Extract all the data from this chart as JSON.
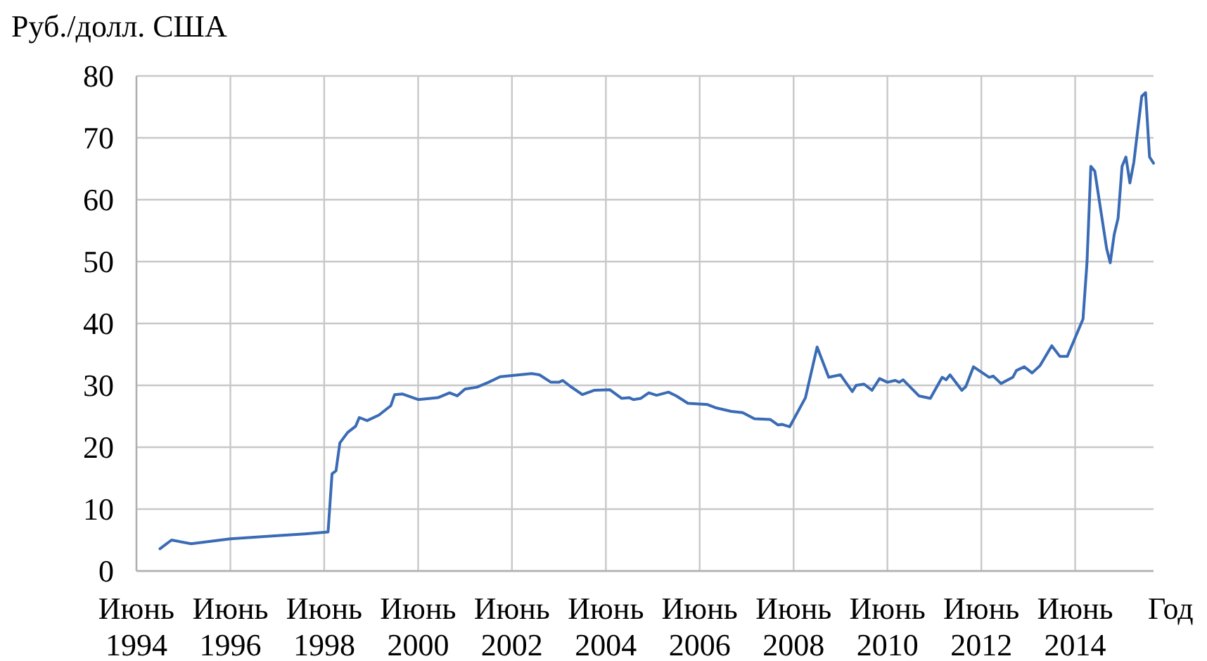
{
  "chart_data": {
    "type": "line",
    "ylabel": "Руб./долл. США",
    "xlabel": "Год",
    "xlim": [
      "1994-06",
      "2016-02"
    ],
    "ylim": [
      0,
      80
    ],
    "yticks": [
      0,
      10,
      20,
      30,
      40,
      50,
      60,
      70,
      80
    ],
    "xticks": [
      {
        "value": "1994-06",
        "label": "Июнь 1994"
      },
      {
        "value": "1996-06",
        "label": "Июнь 1996"
      },
      {
        "value": "1998-06",
        "label": "Июнь 1998"
      },
      {
        "value": "2000-06",
        "label": "Июнь 2000"
      },
      {
        "value": "2002-06",
        "label": "Июнь 2002"
      },
      {
        "value": "2004-06",
        "label": "Июнь 2004"
      },
      {
        "value": "2006-06",
        "label": "Июнь 2006"
      },
      {
        "value": "2008-06",
        "label": "Июнь 2008"
      },
      {
        "value": "2010-06",
        "label": "Июнь 2010"
      },
      {
        "value": "2012-06",
        "label": "Июнь 2012"
      },
      {
        "value": "2014-06",
        "label": "Июнь 2014"
      }
    ],
    "grid": true,
    "marker": "none",
    "line_style": "solid",
    "series": [
      {
        "color": "#3a6bb5",
        "x": [
          "1994-12",
          "1995-03",
          "1995-08",
          "1996-06",
          "1997-06",
          "1998-01",
          "1998-07",
          "1998-08",
          "1998-09",
          "1998-10",
          "1998-12",
          "1999-02",
          "1999-03",
          "1999-05",
          "1999-08",
          "1999-11",
          "1999-12",
          "2000-02",
          "2000-06",
          "2000-11",
          "2001-02",
          "2001-04",
          "2001-06",
          "2001-09",
          "2001-12",
          "2002-03",
          "2002-11",
          "2003-01",
          "2003-04",
          "2003-06",
          "2003-07",
          "2003-09",
          "2003-12",
          "2004-03",
          "2004-07",
          "2004-10",
          "2004-12",
          "2005-01",
          "2005-03",
          "2005-05",
          "2005-07",
          "2005-10",
          "2005-12",
          "2006-03",
          "2006-08",
          "2006-10",
          "2007-02",
          "2007-05",
          "2007-08",
          "2007-12",
          "2008-02",
          "2008-03",
          "2008-05",
          "2008-09",
          "2008-12",
          "2009-03",
          "2009-06",
          "2009-09",
          "2009-10",
          "2009-12",
          "2010-02",
          "2010-04",
          "2010-06",
          "2010-08",
          "2010-09",
          "2010-10",
          "2011-02",
          "2011-05",
          "2011-08",
          "2011-09",
          "2011-10",
          "2012-01",
          "2012-02",
          "2012-04",
          "2012-08",
          "2012-09",
          "2012-11",
          "2013-02",
          "2013-03",
          "2013-05",
          "2013-07",
          "2013-09",
          "2013-12",
          "2014-02",
          "2014-04",
          "2014-06",
          "2014-08",
          "2014-09",
          "2014-10",
          "2014-11",
          "2014-12",
          "2015-02",
          "2015-03",
          "2015-04",
          "2015-05",
          "2015-06",
          "2015-07",
          "2015-08",
          "2015-09",
          "2015-11",
          "2015-12",
          "2016-01",
          "2016-02"
        ],
        "values": [
          3.6,
          5.0,
          4.4,
          5.2,
          5.7,
          6.0,
          6.3,
          15.7,
          16.2,
          20.7,
          22.4,
          23.4,
          24.8,
          24.3,
          25.2,
          26.7,
          28.5,
          28.6,
          27.7,
          28.0,
          28.8,
          28.3,
          29.4,
          29.7,
          30.5,
          31.4,
          31.9,
          31.7,
          30.5,
          30.5,
          30.8,
          29.8,
          28.5,
          29.2,
          29.3,
          27.9,
          28.0,
          27.7,
          27.9,
          28.8,
          28.4,
          28.9,
          28.3,
          27.1,
          26.9,
          26.4,
          25.8,
          25.6,
          24.6,
          24.5,
          23.6,
          23.7,
          23.3,
          28.0,
          36.2,
          31.3,
          31.7,
          29.0,
          30.0,
          30.2,
          29.2,
          31.1,
          30.5,
          30.8,
          30.5,
          30.9,
          28.3,
          27.9,
          31.3,
          30.9,
          31.7,
          29.2,
          29.8,
          33.0,
          31.3,
          31.5,
          30.3,
          31.3,
          32.4,
          33.0,
          32.0,
          33.2,
          36.4,
          34.7,
          34.7,
          37.7,
          40.7,
          49.8,
          65.4,
          64.6,
          60.5,
          52.1,
          49.8,
          54.4,
          57.0,
          65.4,
          66.9,
          62.7,
          66.1,
          76.7,
          77.3,
          66.9,
          65.9
        ]
      }
    ]
  }
}
